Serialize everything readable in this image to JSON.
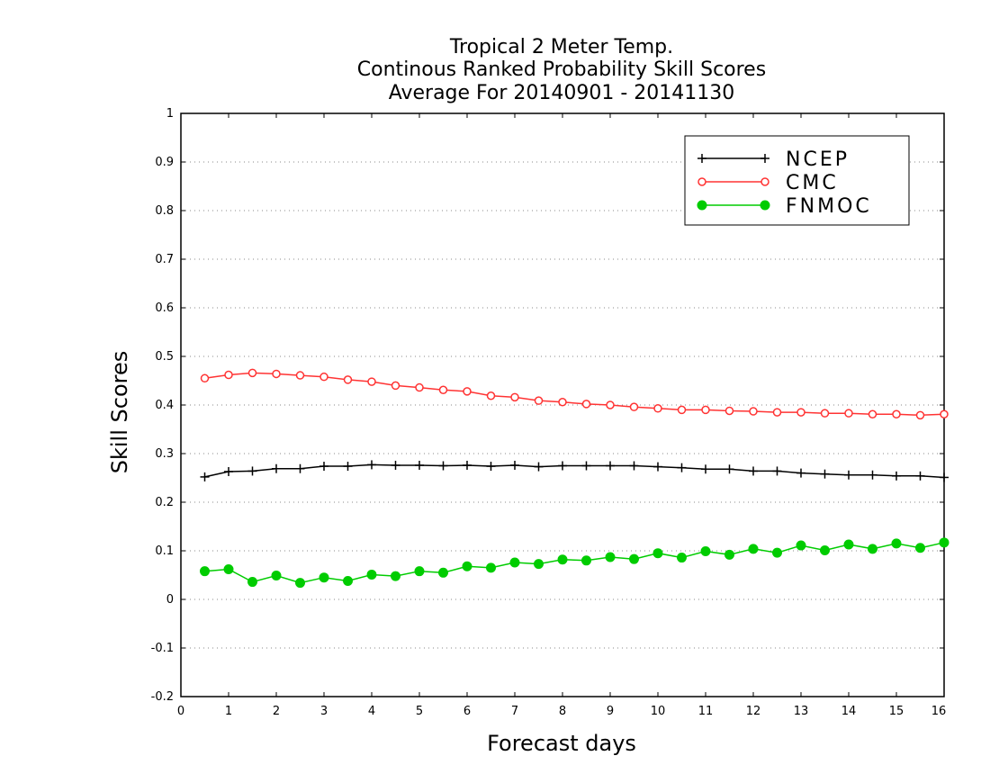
{
  "chart_data": {
    "type": "line",
    "title": [
      "Tropical 2 Meter Temp.",
      "Continous Ranked Probability Skill Scores",
      "Average For 20140901 - 20141130"
    ],
    "xlabel": "Forecast days",
    "ylabel": "Skill Scores",
    "xlim": [
      0,
      16
    ],
    "ylim": [
      -0.2,
      1
    ],
    "xticks": [
      0,
      1,
      2,
      3,
      4,
      5,
      6,
      7,
      8,
      9,
      10,
      11,
      12,
      13,
      14,
      15,
      16
    ],
    "yticks": [
      -0.2,
      -0.1,
      0,
      0.1,
      0.2,
      0.3,
      0.4,
      0.5,
      0.6,
      0.7,
      0.8,
      0.9,
      1
    ],
    "ytick_labels": [
      "-0.2",
      "-0.1",
      "0",
      "0.1",
      "0.2",
      "0.3",
      "0.4",
      "0.5",
      "0.6",
      "0.7",
      "0.8",
      "0.9",
      "1"
    ],
    "grid": "horizontal dotted",
    "legend_position": "top-right",
    "x": [
      0.5,
      1,
      1.5,
      2,
      2.5,
      3,
      3.5,
      4,
      4.5,
      5,
      5.5,
      6,
      6.5,
      7,
      7.5,
      8,
      8.5,
      9,
      9.5,
      10,
      10.5,
      11,
      11.5,
      12,
      12.5,
      13,
      13.5,
      14,
      14.5,
      15,
      15.5,
      16
    ],
    "series": [
      {
        "name": "NCEP",
        "color": "#000000",
        "marker": "plus",
        "values": [
          0.252,
          0.263,
          0.264,
          0.269,
          0.269,
          0.274,
          0.274,
          0.277,
          0.276,
          0.276,
          0.275,
          0.276,
          0.274,
          0.276,
          0.273,
          0.275,
          0.275,
          0.275,
          0.275,
          0.273,
          0.271,
          0.268,
          0.268,
          0.264,
          0.264,
          0.26,
          0.258,
          0.256,
          0.256,
          0.254,
          0.254,
          0.251
        ]
      },
      {
        "name": "CMC",
        "color": "#ff3333",
        "marker": "open-circle",
        "values": [
          0.455,
          0.462,
          0.466,
          0.464,
          0.461,
          0.458,
          0.452,
          0.448,
          0.44,
          0.436,
          0.431,
          0.428,
          0.419,
          0.416,
          0.409,
          0.406,
          0.402,
          0.4,
          0.396,
          0.393,
          0.39,
          0.39,
          0.388,
          0.387,
          0.385,
          0.385,
          0.383,
          0.383,
          0.381,
          0.381,
          0.379,
          0.381
        ]
      },
      {
        "name": "FNMOC",
        "color": "#00cc00",
        "marker": "filled-circle",
        "values": [
          0.058,
          0.062,
          0.036,
          0.049,
          0.034,
          0.045,
          0.038,
          0.051,
          0.048,
          0.058,
          0.055,
          0.068,
          0.065,
          0.076,
          0.073,
          0.082,
          0.08,
          0.087,
          0.083,
          0.095,
          0.086,
          0.099,
          0.092,
          0.104,
          0.096,
          0.111,
          0.101,
          0.113,
          0.104,
          0.115,
          0.106,
          0.117
        ]
      }
    ]
  }
}
